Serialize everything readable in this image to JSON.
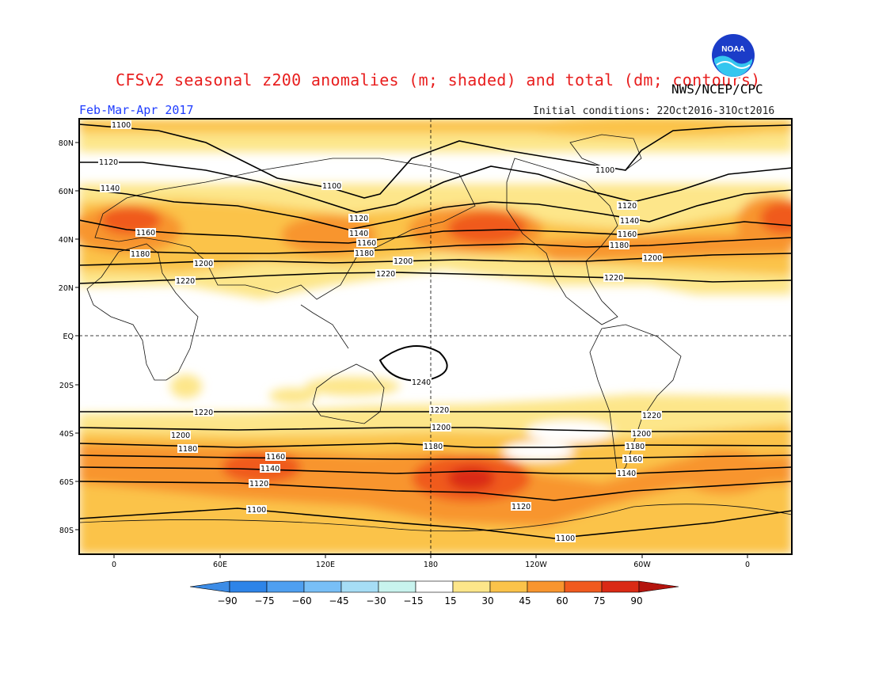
{
  "header": {
    "title": "CFSv2 seasonal z200 anomalies (m; shaded) and total (dm; contours)",
    "org": "NWS/NCEP/CPC",
    "period": "Feb-Mar-Apr 2017",
    "initial_conditions": "Initial conditions: 22Oct2016-31Oct2016",
    "logo_text": "NOAA"
  },
  "axes": {
    "lat_ticks": [
      "80N",
      "60N",
      "40N",
      "20N",
      "EQ",
      "20S",
      "40S",
      "60S",
      "80S"
    ],
    "lon_ticks": [
      "0",
      "60E",
      "120E",
      "180",
      "120W",
      "60W",
      "0"
    ]
  },
  "colorbar": {
    "labels": [
      "-90",
      "-75",
      "-60",
      "-45",
      "-30",
      "-15",
      "15",
      "30",
      "45",
      "60",
      "75",
      "90"
    ],
    "colors": [
      "#3c8ce6",
      "#2d84e8",
      "#4f9ff0",
      "#78bff7",
      "#a6ddf5",
      "#c8f3ee",
      "#ffffff",
      "#fde68a",
      "#fbc34a",
      "#f8952e",
      "#f05a1e",
      "#da2a15",
      "#b4140e"
    ]
  },
  "contour_labels": {
    "north": [
      "1100",
      "1120",
      "1140",
      "1160",
      "1180",
      "1200",
      "1220",
      "1100",
      "1120",
      "1140",
      "1160",
      "1180",
      "1200",
      "1220",
      "1100",
      "1120",
      "1140",
      "1160",
      "1180",
      "1200",
      "1220"
    ],
    "tropics": [
      "1240"
    ],
    "south": [
      "1220",
      "1200",
      "1180",
      "1160",
      "1140",
      "1120",
      "1100",
      "1220",
      "1200",
      "1180",
      "1220",
      "1200",
      "1180",
      "1160",
      "1140",
      "1120",
      "1100"
    ]
  }
}
